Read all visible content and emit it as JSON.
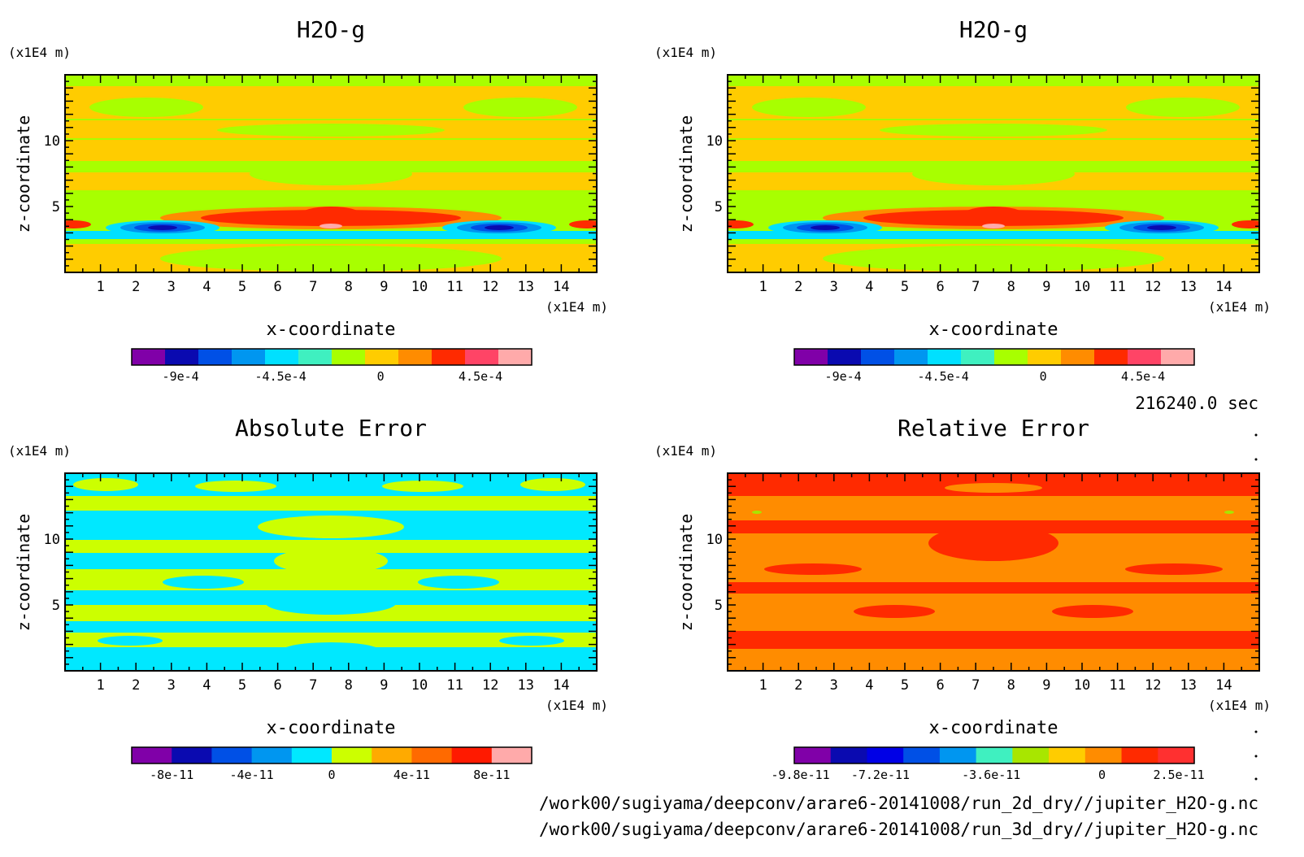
{
  "chart_data": [
    {
      "type": "heatmap",
      "title": "H2O-g",
      "xlabel": "x-coordinate",
      "ylabel": "z-coordinate",
      "x_unit": "(x1E4 m)",
      "y_unit": "(x1E4 m)",
      "xlim": [
        0,
        15
      ],
      "ylim": [
        0,
        15
      ],
      "x_ticks": [
        "1",
        "2",
        "3",
        "4",
        "5",
        "6",
        "7",
        "8",
        "9",
        "10",
        "11",
        "12",
        "13",
        "14"
      ],
      "y_ticks": [
        "5",
        "10"
      ],
      "colorbar": {
        "colors": [
          "#8000a8",
          "#0a0ab0",
          "#0050e6",
          "#0096f0",
          "#00e0ff",
          "#3ff0c0",
          "#a8ff00",
          "#ffcc00",
          "#ff8c00",
          "#ff2a00",
          "#ff4466",
          "#ffaaaa"
        ],
        "labels": [
          "-9e-4",
          "-4.5e-4",
          "0",
          "4.5e-4"
        ],
        "label_values": [
          -0.0009,
          -0.00045,
          0,
          0.00045
        ],
        "range": [
          -0.00112,
          0.00068
        ]
      }
    },
    {
      "type": "heatmap",
      "title": "H2O-g",
      "xlabel": "x-coordinate",
      "ylabel": "z-coordinate",
      "x_unit": "(x1E4 m)",
      "y_unit": "(x1E4 m)",
      "xlim": [
        0,
        15
      ],
      "ylim": [
        0,
        15
      ],
      "x_ticks": [
        "1",
        "2",
        "3",
        "4",
        "5",
        "6",
        "7",
        "8",
        "9",
        "10",
        "11",
        "12",
        "13",
        "14"
      ],
      "y_ticks": [
        "5",
        "10"
      ],
      "colorbar": {
        "colors": [
          "#8000a8",
          "#0a0ab0",
          "#0050e6",
          "#0096f0",
          "#00e0ff",
          "#3ff0c0",
          "#a8ff00",
          "#ffcc00",
          "#ff8c00",
          "#ff2a00",
          "#ff4466",
          "#ffaaaa"
        ],
        "labels": [
          "-9e-4",
          "-4.5e-4",
          "0",
          "4.5e-4"
        ],
        "label_values": [
          -0.0009,
          -0.00045,
          0,
          0.00045
        ],
        "range": [
          -0.00112,
          0.00068
        ]
      }
    },
    {
      "type": "heatmap",
      "title": "Absolute Error",
      "xlabel": "x-coordinate",
      "ylabel": "z-coordinate",
      "x_unit": "(x1E4 m)",
      "y_unit": "(x1E4 m)",
      "xlim": [
        0,
        15
      ],
      "ylim": [
        0,
        15
      ],
      "x_ticks": [
        "1",
        "2",
        "3",
        "4",
        "5",
        "6",
        "7",
        "8",
        "9",
        "10",
        "11",
        "12",
        "13",
        "14"
      ],
      "y_ticks": [
        "5",
        "10"
      ],
      "colorbar": {
        "colors": [
          "#8000a8",
          "#0a0ab0",
          "#0050e6",
          "#0096f0",
          "#00e8ff",
          "#ccff00",
          "#ffaa00",
          "#ff6a00",
          "#ff1a00",
          "#ffaaaa"
        ],
        "labels": [
          "-8e-11",
          "-4e-11",
          "0",
          "4e-11",
          "8e-11"
        ],
        "label_values": [
          -8e-11,
          -4e-11,
          0,
          4e-11,
          8e-11
        ],
        "range": [
          -1e-10,
          1e-10
        ]
      }
    },
    {
      "type": "heatmap",
      "title": "Relative Error",
      "xlabel": "x-coordinate",
      "ylabel": "z-coordinate",
      "x_unit": "(x1E4 m)",
      "y_unit": "(x1E4 m)",
      "xlim": [
        0,
        15
      ],
      "ylim": [
        0,
        15
      ],
      "x_ticks": [
        "1",
        "2",
        "3",
        "4",
        "5",
        "6",
        "7",
        "8",
        "9",
        "10",
        "11",
        "12",
        "13",
        "14"
      ],
      "y_ticks": [
        "5",
        "10"
      ],
      "colorbar": {
        "colors": [
          "#8000a8",
          "#0a0ab0",
          "#0000e6",
          "#0050e6",
          "#0096f0",
          "#3ff0c0",
          "#a8e600",
          "#ffcc00",
          "#ff8c00",
          "#ff2a00",
          "#ff3030"
        ],
        "labels": [
          "-9.8e-11",
          "-7.2e-11",
          "-3.6e-11",
          "0",
          "2.5e-11"
        ],
        "label_values": [
          -9.8e-11,
          -7.2e-11,
          -3.6e-11,
          0,
          2.5e-11
        ],
        "range": [
          -1e-10,
          3e-11
        ]
      }
    }
  ],
  "time_label": "216240.0 sec",
  "files": [
    "/work00/sugiyama/deepconv/arare6-20141008/run_2d_dry//jupiter_H2O-g.nc",
    "/work00/sugiyama/deepconv/arare6-20141008/run_3d_dry//jupiter_H2O-g.nc"
  ]
}
